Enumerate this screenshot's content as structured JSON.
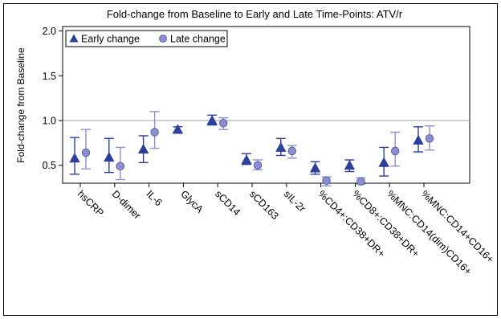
{
  "chart_data": {
    "type": "scatter",
    "title": "Fold-change from Baseline to Early and Late Time-Points: ATV/r",
    "xlabel": "",
    "ylabel": "Fold-change from Baseline",
    "ylim": [
      0.3,
      2.05
    ],
    "yticks": [
      "0.5",
      "1.0",
      "1.5",
      "2.0"
    ],
    "reference_line": 1.0,
    "grid": false,
    "legend_position": "top-left",
    "categories": [
      "hsCRP",
      "D-dimer",
      "IL-6",
      "GlycA",
      "sCD14",
      "sCD163",
      "sIL-2r",
      "%CD4+:CD38+DR+",
      "%CD8+:CD38+DR+",
      "%MNC:CD14(dim)CD16+",
      "%MNC:CD14+CD16+"
    ],
    "series": [
      {
        "name": "Early change",
        "marker": "triangle",
        "color": "#2b3f9c",
        "values": [
          0.58,
          0.59,
          0.68,
          0.9,
          1.0,
          0.56,
          0.7,
          0.47,
          0.5,
          0.53,
          0.78
        ],
        "lower": [
          0.4,
          0.42,
          0.53,
          0.87,
          0.95,
          0.51,
          0.61,
          0.4,
          0.43,
          0.38,
          0.65
        ],
        "upper": [
          0.81,
          0.8,
          0.83,
          0.93,
          1.06,
          0.63,
          0.8,
          0.54,
          0.56,
          0.7,
          0.93
        ]
      },
      {
        "name": "Late change",
        "marker": "circle",
        "color": "#8e8fd0",
        "values": [
          0.64,
          0.49,
          0.87,
          null,
          0.97,
          0.5,
          0.66,
          0.33,
          0.32,
          0.66,
          0.8
        ],
        "lower": [
          0.46,
          0.34,
          0.69,
          null,
          0.9,
          0.45,
          0.58,
          0.27,
          0.29,
          0.49,
          0.67
        ],
        "upper": [
          0.9,
          0.7,
          1.1,
          null,
          1.03,
          0.56,
          0.72,
          0.37,
          0.36,
          0.87,
          0.94
        ]
      }
    ]
  }
}
